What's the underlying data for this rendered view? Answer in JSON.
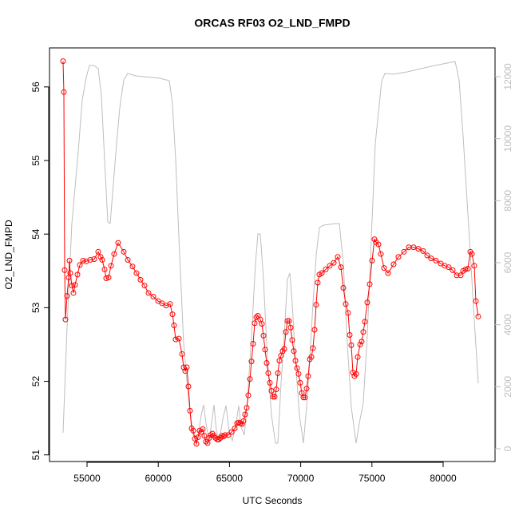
{
  "chart_data": {
    "type": "line",
    "title": "ORCAS RF03 O2_LND_FMPD",
    "xlabel": "UTC Seconds",
    "ylabel": "O2_LND_FMPD",
    "xlim": [
      52366,
      83643
    ],
    "ylim": [
      50.91,
      56.53
    ],
    "y2lim": [
      -412,
      12927
    ],
    "xticks": [
      55000,
      60000,
      65000,
      70000,
      75000,
      80000
    ],
    "yticks": [
      51,
      52,
      53,
      54,
      55,
      56
    ],
    "y2ticks": [
      0,
      2000,
      4000,
      6000,
      8000,
      10000,
      12000
    ],
    "series": [
      {
        "color": "#ff0000",
        "marker": "circle",
        "x": [
          53318,
          53374,
          53430,
          53487,
          53599,
          53711,
          53767,
          53823,
          53935,
          54047,
          54159,
          54327,
          54496,
          54720,
          54944,
          55224,
          55504,
          55785,
          55953,
          56065,
          56233,
          56345,
          56513,
          56682,
          56906,
          57186,
          57578,
          57859,
          58195,
          58475,
          58755,
          59036,
          59316,
          59652,
          59988,
          60269,
          60549,
          60829,
          60997,
          61109,
          61221,
          61446,
          61670,
          61782,
          61894,
          62006,
          62118,
          62230,
          62342,
          62455,
          62567,
          62679,
          62791,
          62903,
          63015,
          63127,
          63239,
          63351,
          63463,
          63575,
          63687,
          63800,
          63912,
          64024,
          64136,
          64248,
          64360,
          64472,
          64584,
          64697,
          64921,
          65145,
          65369,
          65537,
          65650,
          65762,
          65874,
          65986,
          66098,
          66210,
          66322,
          66434,
          66546,
          66658,
          66771,
          66883,
          66995,
          67163,
          67275,
          67387,
          67499,
          67611,
          67723,
          67835,
          67948,
          68060,
          68172,
          68284,
          68396,
          68508,
          68620,
          68732,
          68844,
          68956,
          69069,
          69181,
          69293,
          69405,
          69517,
          69629,
          69741,
          69853,
          69965,
          70077,
          70190,
          70302,
          70414,
          70526,
          70638,
          70750,
          70862,
          70974,
          71086,
          71198,
          71311,
          71479,
          71759,
          72039,
          72320,
          72600,
          72824,
          72992,
          73160,
          73328,
          73440,
          73553,
          73665,
          73777,
          73889,
          74001,
          74169,
          74281,
          74393,
          74505,
          74674,
          74842,
          75010,
          75178,
          75290,
          75458,
          75626,
          75851,
          76131,
          76523,
          76860,
          77252,
          77588,
          77924,
          78261,
          78597,
          78877,
          79158,
          79494,
          79830,
          80110,
          80391,
          80671,
          80951,
          81231,
          81400,
          81568,
          81736,
          81904,
          82016,
          82184,
          82296,
          82465
        ],
        "values": [
          56.35,
          55.93,
          53.51,
          52.84,
          53.16,
          53.41,
          53.64,
          53.47,
          53.3,
          53.2,
          53.31,
          53.45,
          53.58,
          53.64,
          53.63,
          53.65,
          53.66,
          53.76,
          53.69,
          53.65,
          53.52,
          53.4,
          53.41,
          53.57,
          53.73,
          53.88,
          53.76,
          53.65,
          53.56,
          53.47,
          53.38,
          53.3,
          53.2,
          53.15,
          53.09,
          53.06,
          53.03,
          53.05,
          52.91,
          52.76,
          52.57,
          52.58,
          52.37,
          52.19,
          52.14,
          52.19,
          51.93,
          51.6,
          51.36,
          51.33,
          51.22,
          51.15,
          51.24,
          51.33,
          51.31,
          51.35,
          51.26,
          51.18,
          51.16,
          51.23,
          51.27,
          51.29,
          51.26,
          51.23,
          51.21,
          51.21,
          51.23,
          51.26,
          51.25,
          51.27,
          51.27,
          51.31,
          51.36,
          51.43,
          51.44,
          51.43,
          51.42,
          51.46,
          51.55,
          51.64,
          51.81,
          52.03,
          52.27,
          52.51,
          52.79,
          52.87,
          52.89,
          52.84,
          52.78,
          52.62,
          52.43,
          52.25,
          52.11,
          51.98,
          51.87,
          51.79,
          51.79,
          51.89,
          52.11,
          52.28,
          52.35,
          52.41,
          52.44,
          52.67,
          52.82,
          52.82,
          52.73,
          52.56,
          52.41,
          52.28,
          52.18,
          52.1,
          51.98,
          51.84,
          51.78,
          51.78,
          51.9,
          52.07,
          52.3,
          52.33,
          52.45,
          52.7,
          53.04,
          53.34,
          53.45,
          53.47,
          53.52,
          53.57,
          53.61,
          53.69,
          53.55,
          53.27,
          53.05,
          52.93,
          52.63,
          52.49,
          52.12,
          52.07,
          52.1,
          52.33,
          52.5,
          52.54,
          52.67,
          52.81,
          53.07,
          53.32,
          53.64,
          53.93,
          53.89,
          53.86,
          53.73,
          53.54,
          53.47,
          53.59,
          53.69,
          53.76,
          53.82,
          53.82,
          53.8,
          53.77,
          53.71,
          53.67,
          53.64,
          53.6,
          53.57,
          53.55,
          53.51,
          53.44,
          53.44,
          53.5,
          53.52,
          53.53,
          53.76,
          53.73,
          53.57,
          53.09,
          52.88
        ]
      },
      {
        "color": "#bebebe",
        "axis": "y2",
        "x": [
          53318,
          53599,
          53935,
          54159,
          54383,
          54664,
          54944,
          55168,
          55504,
          55785,
          56009,
          56233,
          56457,
          56625,
          56850,
          57074,
          57298,
          57578,
          57859,
          58419,
          60101,
          60773,
          60997,
          61222,
          61502,
          61782,
          62118,
          62455,
          62791,
          63015,
          63183,
          63351,
          63576,
          63744,
          63912,
          64080,
          64304,
          64529,
          64753,
          64977,
          65201,
          65425,
          65650,
          65818,
          66042,
          66266,
          66546,
          66827,
          66995,
          67163,
          67387,
          67667,
          67948,
          68228,
          68396,
          68620,
          68844,
          69069,
          69237,
          69405,
          69629,
          69909,
          70190,
          70414,
          70638,
          70862,
          71086,
          71311,
          71591,
          72432,
          72712,
          72992,
          73272,
          73553,
          73889,
          74113,
          74393,
          74674,
          74954,
          75234,
          75682,
          75907,
          76467,
          77476,
          79158,
          80839,
          81119,
          81400,
          81848,
          82184,
          82464
        ],
        "values": [
          515,
          3914,
          7262,
          8420,
          9579,
          11253,
          11974,
          12360,
          12360,
          12257,
          11382,
          9322,
          7313,
          7262,
          8549,
          9837,
          10995,
          11897,
          12103,
          12026,
          11948,
          11871,
          11124,
          9322,
          6232,
          3399,
          1597,
          438,
          386,
          1082,
          1416,
          824,
          258,
          824,
          1416,
          567,
          309,
          953,
          1391,
          567,
          258,
          695,
          1391,
          695,
          438,
          1597,
          3657,
          5974,
          6927,
          6927,
          5459,
          2884,
          1082,
          180,
          180,
          2112,
          3657,
          5459,
          5665,
          4687,
          2884,
          1082,
          180,
          1339,
          2884,
          4687,
          6232,
          7133,
          7210,
          7262,
          7262,
          5974,
          3399,
          1339,
          180,
          824,
          1468,
          3657,
          6747,
          9837,
          11845,
          12103,
          12077,
          12154,
          12334,
          12489,
          11897,
          10094,
          6747,
          4172,
          2112
        ]
      }
    ]
  }
}
